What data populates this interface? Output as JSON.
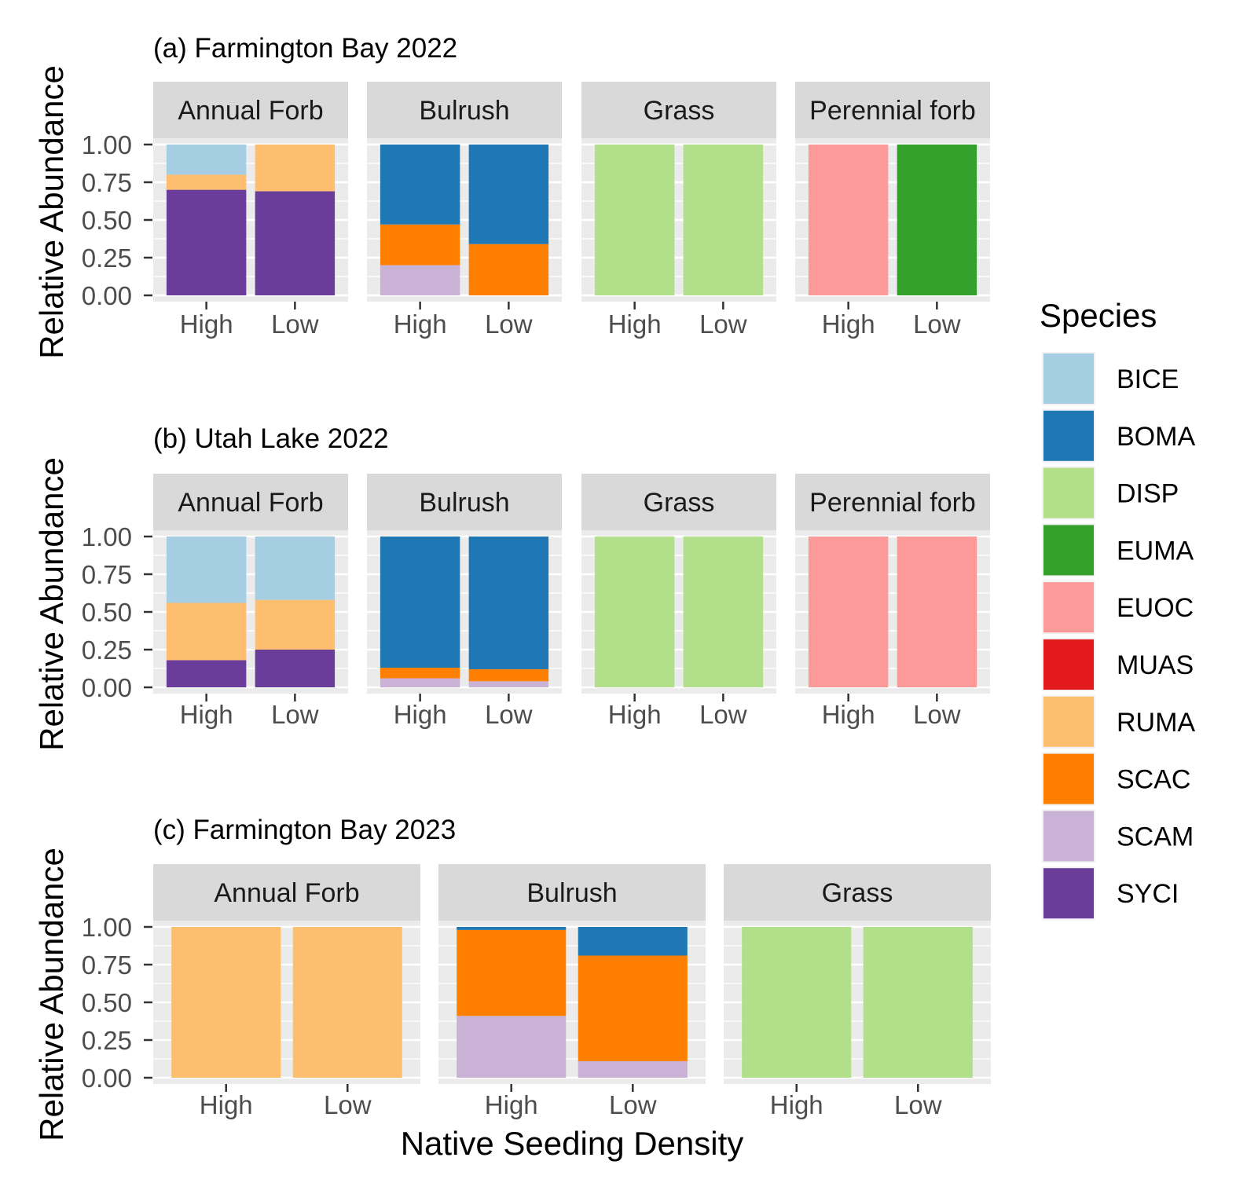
{
  "chart_data": [
    {
      "type": "bar",
      "title": "(a) Farmington Bay 2022",
      "ylabel": "Relative Abundance",
      "ylim": [
        0,
        1
      ],
      "yticks": [
        "0.00",
        "0.25",
        "0.50",
        "0.75",
        "1.00"
      ],
      "categories": [
        "High",
        "Low"
      ],
      "facets": [
        {
          "label": "Annual Forb",
          "bars": [
            {
              "category": "High",
              "segments": [
                {
                  "species": "SYCI",
                  "value": 0.7
                },
                {
                  "species": "RUMA",
                  "value": 0.1
                },
                {
                  "species": "BICE",
                  "value": 0.2
                }
              ]
            },
            {
              "category": "Low",
              "segments": [
                {
                  "species": "SYCI",
                  "value": 0.69
                },
                {
                  "species": "RUMA",
                  "value": 0.31
                }
              ]
            }
          ]
        },
        {
          "label": "Bulrush",
          "bars": [
            {
              "category": "High",
              "segments": [
                {
                  "species": "SCAM",
                  "value": 0.2
                },
                {
                  "species": "SCAC",
                  "value": 0.27
                },
                {
                  "species": "BOMA",
                  "value": 0.53
                }
              ]
            },
            {
              "category": "Low",
              "segments": [
                {
                  "species": "SCAC",
                  "value": 0.34
                },
                {
                  "species": "BOMA",
                  "value": 0.66
                }
              ]
            }
          ]
        },
        {
          "label": "Grass",
          "bars": [
            {
              "category": "High",
              "segments": [
                {
                  "species": "DISP",
                  "value": 1.0
                }
              ]
            },
            {
              "category": "Low",
              "segments": [
                {
                  "species": "DISP",
                  "value": 1.0
                }
              ]
            }
          ]
        },
        {
          "label": "Perennial forb",
          "bars": [
            {
              "category": "High",
              "segments": [
                {
                  "species": "EUOC",
                  "value": 1.0
                }
              ]
            },
            {
              "category": "Low",
              "segments": [
                {
                  "species": "EUMA",
                  "value": 1.0
                }
              ]
            }
          ]
        }
      ]
    },
    {
      "type": "bar",
      "title": "(b) Utah Lake 2022",
      "ylabel": "Relative Abundance",
      "ylim": [
        0,
        1
      ],
      "yticks": [
        "0.00",
        "0.25",
        "0.50",
        "0.75",
        "1.00"
      ],
      "categories": [
        "High",
        "Low"
      ],
      "facets": [
        {
          "label": "Annual Forb",
          "bars": [
            {
              "category": "High",
              "segments": [
                {
                  "species": "SYCI",
                  "value": 0.18
                },
                {
                  "species": "RUMA",
                  "value": 0.38
                },
                {
                  "species": "BICE",
                  "value": 0.44
                }
              ]
            },
            {
              "category": "Low",
              "segments": [
                {
                  "species": "SYCI",
                  "value": 0.25
                },
                {
                  "species": "RUMA",
                  "value": 0.33
                },
                {
                  "species": "BICE",
                  "value": 0.42
                }
              ]
            }
          ]
        },
        {
          "label": "Bulrush",
          "bars": [
            {
              "category": "High",
              "segments": [
                {
                  "species": "SCAM",
                  "value": 0.06
                },
                {
                  "species": "SCAC",
                  "value": 0.07
                },
                {
                  "species": "BOMA",
                  "value": 0.87
                }
              ]
            },
            {
              "category": "Low",
              "segments": [
                {
                  "species": "SCAM",
                  "value": 0.04
                },
                {
                  "species": "SCAC",
                  "value": 0.08
                },
                {
                  "species": "BOMA",
                  "value": 0.88
                }
              ]
            }
          ]
        },
        {
          "label": "Grass",
          "bars": [
            {
              "category": "High",
              "segments": [
                {
                  "species": "DISP",
                  "value": 1.0
                }
              ]
            },
            {
              "category": "Low",
              "segments": [
                {
                  "species": "DISP",
                  "value": 1.0
                }
              ]
            }
          ]
        },
        {
          "label": "Perennial forb",
          "bars": [
            {
              "category": "High",
              "segments": [
                {
                  "species": "EUOC",
                  "value": 1.0
                }
              ]
            },
            {
              "category": "Low",
              "segments": [
                {
                  "species": "EUOC",
                  "value": 1.0
                }
              ]
            }
          ]
        }
      ]
    },
    {
      "type": "bar",
      "title": "(c) Farmington Bay 2023",
      "ylabel": "Relative Abundance",
      "xlabel": "Native Seeding Density",
      "ylim": [
        0,
        1
      ],
      "yticks": [
        "0.00",
        "0.25",
        "0.50",
        "0.75",
        "1.00"
      ],
      "categories": [
        "High",
        "Low"
      ],
      "facets": [
        {
          "label": "Annual Forb",
          "bars": [
            {
              "category": "High",
              "segments": [
                {
                  "species": "RUMA",
                  "value": 1.0
                }
              ]
            },
            {
              "category": "Low",
              "segments": [
                {
                  "species": "RUMA",
                  "value": 1.0
                }
              ]
            }
          ]
        },
        {
          "label": "Bulrush",
          "bars": [
            {
              "category": "High",
              "segments": [
                {
                  "species": "SCAM",
                  "value": 0.41
                },
                {
                  "species": "SCAC",
                  "value": 0.57
                },
                {
                  "species": "BOMA",
                  "value": 0.02
                }
              ]
            },
            {
              "category": "Low",
              "segments": [
                {
                  "species": "SCAM",
                  "value": 0.11
                },
                {
                  "species": "SCAC",
                  "value": 0.7
                },
                {
                  "species": "BOMA",
                  "value": 0.19
                }
              ]
            }
          ]
        },
        {
          "label": "Grass",
          "bars": [
            {
              "category": "High",
              "segments": [
                {
                  "species": "DISP",
                  "value": 1.0
                }
              ]
            },
            {
              "category": "Low",
              "segments": [
                {
                  "species": "DISP",
                  "value": 1.0
                }
              ]
            }
          ]
        }
      ]
    }
  ],
  "legend": {
    "title": "Species",
    "placement": "right",
    "items": [
      {
        "label": "BICE",
        "color": "#A6CEE3"
      },
      {
        "label": "BOMA",
        "color": "#1F78B4"
      },
      {
        "label": "DISP",
        "color": "#B2DF8A"
      },
      {
        "label": "EUMA",
        "color": "#33A02C"
      },
      {
        "label": "EUOC",
        "color": "#FB9A99"
      },
      {
        "label": "MUAS",
        "color": "#E31A1C"
      },
      {
        "label": "RUMA",
        "color": "#FDBF6F"
      },
      {
        "label": "SCAC",
        "color": "#FF7F00"
      },
      {
        "label": "SCAM",
        "color": "#CAB2D6"
      },
      {
        "label": "SYCI",
        "color": "#6A3D9A"
      }
    ]
  }
}
